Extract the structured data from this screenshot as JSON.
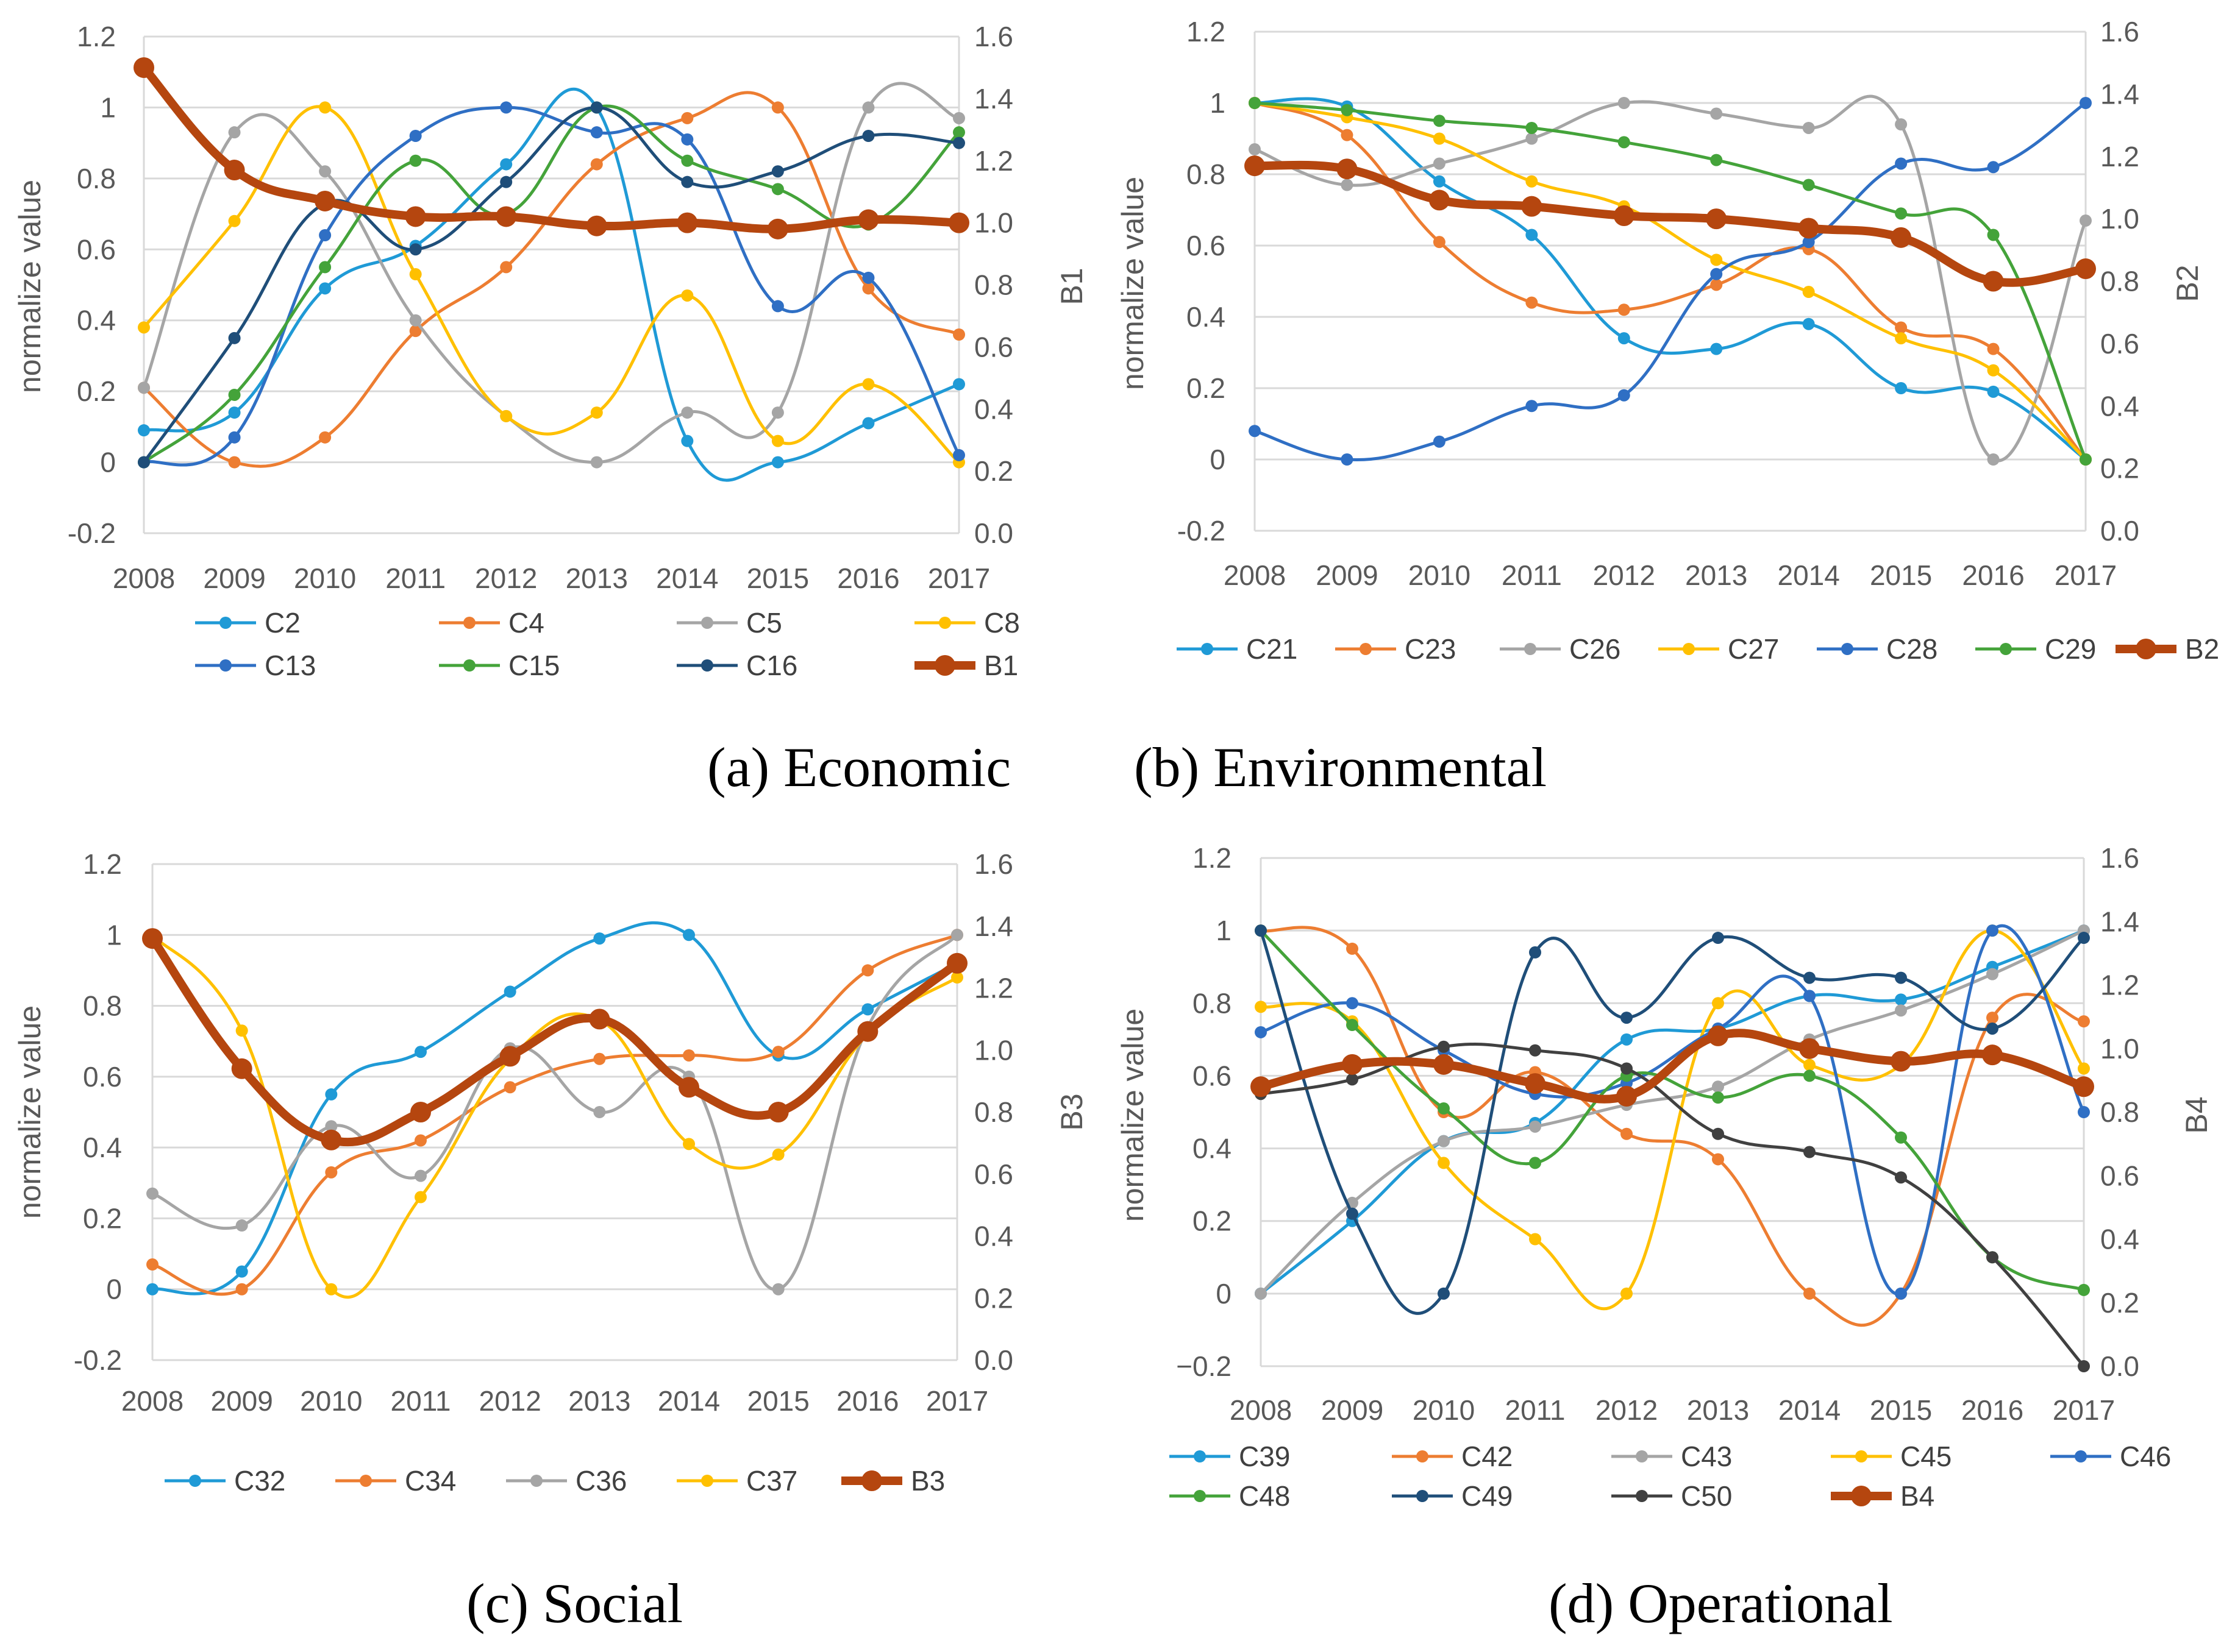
{
  "chart_data": [
    {
      "id": "a",
      "type": "line",
      "caption": "(a) Economic",
      "ylabel": "normalize value",
      "y2label": "B1",
      "ylim": [
        -0.2,
        1.2
      ],
      "y2lim": [
        0.0,
        1.6
      ],
      "y_ticks": [
        "1.2",
        "1",
        "0.8",
        "0.6",
        "0.4",
        "0.2",
        "0",
        "-0.2"
      ],
      "y2_ticks": [
        "1.6",
        "1.4",
        "1.2",
        "1.0",
        "0.8",
        "0.6",
        "0.4",
        "0.2",
        "0.0"
      ],
      "categories": [
        "2008",
        "2009",
        "2010",
        "2011",
        "2012",
        "2013",
        "2014",
        "2015",
        "2016",
        "2017"
      ],
      "series": [
        {
          "name": "C2",
          "color": "#1f9ad6",
          "values": [
            0.09,
            0.14,
            0.49,
            0.61,
            0.84,
            1.0,
            0.06,
            0.0,
            0.11,
            0.22
          ]
        },
        {
          "name": "C4",
          "color": "#ed7d31",
          "values": [
            0.21,
            0.0,
            0.07,
            0.37,
            0.55,
            0.84,
            0.97,
            1.0,
            0.49,
            0.36
          ]
        },
        {
          "name": "C5",
          "color": "#a5a5a5",
          "values": [
            0.21,
            0.93,
            0.82,
            0.4,
            0.13,
            0.0,
            0.14,
            0.14,
            1.0,
            0.97
          ]
        },
        {
          "name": "C8",
          "color": "#ffc000",
          "values": [
            0.38,
            0.68,
            1.0,
            0.53,
            0.13,
            0.14,
            0.47,
            0.06,
            0.22,
            0.0
          ]
        },
        {
          "name": "C13",
          "color": "#2f6fc4",
          "values": [
            0.0,
            0.07,
            0.64,
            0.92,
            1.0,
            0.93,
            0.91,
            0.44,
            0.52,
            0.02
          ]
        },
        {
          "name": "C15",
          "color": "#44a33a",
          "values": [
            0.0,
            0.19,
            0.55,
            0.85,
            0.7,
            1.0,
            0.85,
            0.77,
            0.67,
            0.93
          ]
        },
        {
          "name": "C16",
          "color": "#1f4e79",
          "values": [
            0.0,
            0.35,
            0.73,
            0.6,
            0.79,
            1.0,
            0.79,
            0.82,
            0.92,
            0.9
          ]
        },
        {
          "name": "B1",
          "color": "#b5460f",
          "axis": "right",
          "values": [
            1.5,
            1.17,
            1.07,
            1.02,
            1.02,
            0.99,
            1.0,
            0.98,
            1.01,
            1.0
          ]
        }
      ]
    },
    {
      "id": "b",
      "type": "line",
      "caption": "(b) Environmental",
      "ylabel": "normalize value",
      "y2label": "B2",
      "ylim": [
        -0.2,
        1.2
      ],
      "y2lim": [
        0.0,
        1.6
      ],
      "y_ticks": [
        "1.2",
        "1",
        "0.8",
        "0.6",
        "0.4",
        "0.2",
        "0",
        "-0.2"
      ],
      "y2_ticks": [
        "1.6",
        "1.4",
        "1.2",
        "1.0",
        "0.8",
        "0.6",
        "0.4",
        "0.2",
        "0.0"
      ],
      "categories": [
        "2008",
        "2009",
        "2010",
        "2011",
        "2012",
        "2013",
        "2014",
        "2015",
        "2016",
        "2017"
      ],
      "series": [
        {
          "name": "C21",
          "color": "#1f9ad6",
          "values": [
            1.0,
            0.99,
            0.78,
            0.63,
            0.34,
            0.31,
            0.38,
            0.2,
            0.19,
            0.0
          ]
        },
        {
          "name": "C23",
          "color": "#ed7d31",
          "values": [
            1.0,
            0.91,
            0.61,
            0.44,
            0.42,
            0.49,
            0.59,
            0.37,
            0.31,
            0.0
          ]
        },
        {
          "name": "C26",
          "color": "#a5a5a5",
          "values": [
            0.87,
            0.77,
            0.83,
            0.9,
            1.0,
            0.97,
            0.93,
            0.94,
            0.0,
            0.67
          ]
        },
        {
          "name": "C27",
          "color": "#ffc000",
          "values": [
            1.0,
            0.96,
            0.9,
            0.78,
            0.71,
            0.56,
            0.47,
            0.34,
            0.25,
            0.0
          ]
        },
        {
          "name": "C28",
          "color": "#2f6fc4",
          "values": [
            0.08,
            0.0,
            0.05,
            0.15,
            0.18,
            0.52,
            0.61,
            0.83,
            0.82,
            1.0
          ]
        },
        {
          "name": "C29",
          "color": "#44a33a",
          "values": [
            1.0,
            0.98,
            0.95,
            0.93,
            0.89,
            0.84,
            0.77,
            0.69,
            0.63,
            0.0
          ]
        },
        {
          "name": "B2",
          "color": "#b5460f",
          "axis": "right",
          "values": [
            1.17,
            1.16,
            1.06,
            1.04,
            1.01,
            1.0,
            0.97,
            0.94,
            0.8,
            0.84
          ]
        }
      ]
    },
    {
      "id": "c",
      "type": "line",
      "caption": "(c) Social",
      "ylabel": "normalize value",
      "y2label": "B3",
      "ylim": [
        -0.2,
        1.2
      ],
      "y2lim": [
        0.0,
        1.6
      ],
      "y_ticks": [
        "1.2",
        "1",
        "0.8",
        "0.6",
        "0.4",
        "0.2",
        "0",
        "-0.2"
      ],
      "y2_ticks": [
        "1.6",
        "1.4",
        "1.2",
        "1.0",
        "0.8",
        "0.6",
        "0.4",
        "0.2",
        "0.0"
      ],
      "categories": [
        "2008",
        "2009",
        "2010",
        "2011",
        "2012",
        "2013",
        "2014",
        "2015",
        "2016",
        "2017"
      ],
      "series": [
        {
          "name": "C32",
          "color": "#1f9ad6",
          "values": [
            0.0,
            0.05,
            0.55,
            0.67,
            0.84,
            0.99,
            1.0,
            0.66,
            0.79,
            0.92
          ]
        },
        {
          "name": "C34",
          "color": "#ed7d31",
          "values": [
            0.07,
            0.0,
            0.33,
            0.42,
            0.57,
            0.65,
            0.66,
            0.67,
            0.9,
            1.0
          ]
        },
        {
          "name": "C36",
          "color": "#a5a5a5",
          "values": [
            0.27,
            0.18,
            0.46,
            0.32,
            0.68,
            0.5,
            0.6,
            0.0,
            0.74,
            1.0
          ]
        },
        {
          "name": "C37",
          "color": "#ffc000",
          "values": [
            1.0,
            0.73,
            0.0,
            0.26,
            0.65,
            0.76,
            0.41,
            0.38,
            0.72,
            0.88
          ]
        },
        {
          "name": "B3",
          "color": "#b5460f",
          "axis": "right",
          "values": [
            1.36,
            0.94,
            0.71,
            0.8,
            0.98,
            1.1,
            0.88,
            0.8,
            1.06,
            1.28
          ]
        }
      ]
    },
    {
      "id": "d",
      "type": "line",
      "caption": "(d) Operational",
      "ylabel": "normalize value",
      "y2label": "B4",
      "ylim": [
        -0.2,
        1.2
      ],
      "y2lim": [
        0.0,
        1.6
      ],
      "y_ticks": [
        "1.2",
        "1",
        "0.8",
        "0.6",
        "0.4",
        "0.2",
        "0",
        "−0.2"
      ],
      "y2_ticks": [
        "1.6",
        "1.4",
        "1.2",
        "1.0",
        "0.8",
        "0.6",
        "0.4",
        "0.2",
        "0.0"
      ],
      "categories": [
        "2008",
        "2009",
        "2010",
        "2011",
        "2012",
        "2013",
        "2014",
        "2015",
        "2016",
        "2017"
      ],
      "series": [
        {
          "name": "C39",
          "color": "#1f9ad6",
          "values": [
            0.0,
            0.2,
            0.42,
            0.47,
            0.7,
            0.73,
            0.82,
            0.81,
            0.9,
            1.0
          ]
        },
        {
          "name": "C42",
          "color": "#ed7d31",
          "values": [
            1.0,
            0.95,
            0.5,
            0.61,
            0.44,
            0.37,
            0.0,
            0.0,
            0.76,
            0.75
          ]
        },
        {
          "name": "C43",
          "color": "#a5a5a5",
          "values": [
            0.0,
            0.25,
            0.42,
            0.46,
            0.52,
            0.57,
            0.7,
            0.78,
            0.88,
            1.0
          ]
        },
        {
          "name": "C45",
          "color": "#ffc000",
          "values": [
            0.79,
            0.75,
            0.36,
            0.15,
            0.0,
            0.8,
            0.63,
            0.63,
            1.0,
            0.62
          ]
        },
        {
          "name": "C46",
          "color": "#2f6fc4",
          "values": [
            0.72,
            0.8,
            0.67,
            0.55,
            0.58,
            0.73,
            0.82,
            0.0,
            1.0,
            0.5
          ]
        },
        {
          "name": "C48",
          "color": "#44a33a",
          "values": [
            1.0,
            0.74,
            0.51,
            0.36,
            0.6,
            0.54,
            0.6,
            0.43,
            0.1,
            0.01
          ]
        },
        {
          "name": "C49",
          "color": "#1f4e79",
          "values": [
            1.0,
            0.22,
            0.0,
            0.94,
            0.76,
            0.98,
            0.87,
            0.87,
            0.73,
            0.98
          ]
        },
        {
          "name": "C50",
          "color": "#404040",
          "values": [
            0.55,
            0.59,
            0.68,
            0.67,
            0.62,
            0.44,
            0.39,
            0.32,
            0.1,
            -0.2
          ]
        },
        {
          "name": "B4",
          "color": "#b5460f",
          "axis": "right",
          "values": [
            0.88,
            0.95,
            0.95,
            0.89,
            0.85,
            1.04,
            1.0,
            0.96,
            0.98,
            0.88
          ]
        }
      ]
    }
  ]
}
